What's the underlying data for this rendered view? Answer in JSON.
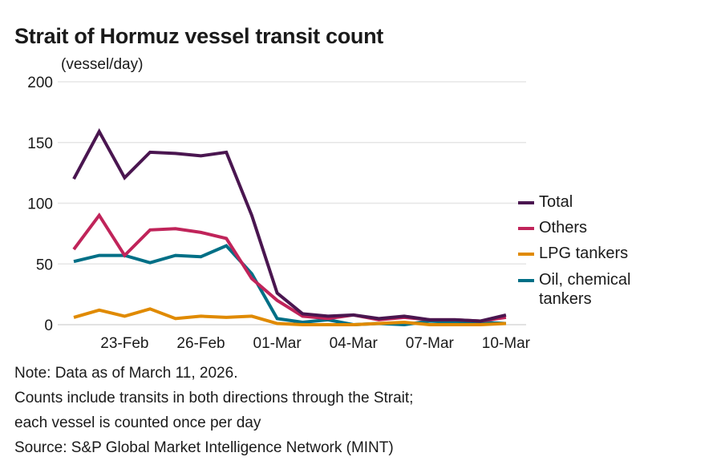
{
  "chart_data": {
    "type": "line",
    "title": "Strait of Hormuz vessel transit count",
    "ylabel": "(vessel/day)",
    "ylim": [
      0,
      200
    ],
    "yticks": [
      0,
      50,
      100,
      150,
      200
    ],
    "x": [
      "21-Feb",
      "22-Feb",
      "23-Feb",
      "24-Feb",
      "25-Feb",
      "26-Feb",
      "27-Feb",
      "28-Feb",
      "01-Mar",
      "02-Mar",
      "03-Mar",
      "04-Mar",
      "05-Mar",
      "06-Mar",
      "07-Mar",
      "08-Mar",
      "09-Mar",
      "10-Mar"
    ],
    "xticklabels": [
      "23-Feb",
      "26-Feb",
      "01-Mar",
      "04-Mar",
      "07-Mar",
      "10-Mar"
    ],
    "grid": true,
    "legend_position": "right",
    "series": [
      {
        "name": "Total",
        "color": "#4a1650",
        "values": [
          120,
          159,
          121,
          142,
          141,
          139,
          142,
          90,
          26,
          9,
          7,
          8,
          5,
          7,
          4,
          4,
          3,
          8
        ]
      },
      {
        "name": "Others",
        "color": "#c0245a",
        "values": [
          62,
          90,
          57,
          78,
          79,
          76,
          71,
          38,
          20,
          7,
          5,
          8,
          4,
          6,
          4,
          4,
          3,
          6
        ]
      },
      {
        "name": "LPG tankers",
        "color": "#e08a00",
        "values": [
          6,
          12,
          7,
          13,
          5,
          7,
          6,
          7,
          1,
          0,
          0,
          0,
          1,
          2,
          0,
          0,
          0,
          1
        ]
      },
      {
        "name": "Oil, chemical tankers",
        "color": "#006f86",
        "values": [
          52,
          57,
          57,
          51,
          57,
          56,
          65,
          42,
          5,
          2,
          4,
          0,
          1,
          0,
          3,
          2,
          2,
          1
        ]
      }
    ]
  },
  "legend_lines": [
    [
      "Total"
    ],
    [
      "Others"
    ],
    [
      "LPG tankers"
    ],
    [
      "Oil, chemical",
      "tankers"
    ]
  ],
  "notes": [
    "Note: Data as of March 11, 2026.",
    "Counts include transits in both directions through the Strait;",
    "each vessel is counted once per day",
    "Source: S&P Global Market Intelligence Network (MINT)"
  ]
}
